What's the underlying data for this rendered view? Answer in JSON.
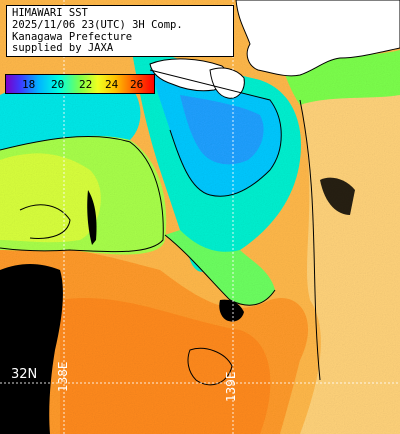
{
  "title": {
    "line1": "HIMAWARI SST",
    "line2": "2025/11/06 23(UTC) 3H Comp.",
    "line3": "Kanagawa Prefecture",
    "line4": "supplied by JAXA"
  },
  "colorbar": {
    "ticks": [
      "18",
      "20",
      "22",
      "24",
      "26"
    ],
    "min": 17,
    "max": 27
  },
  "grid": {
    "lat_label": "32N",
    "lon_label": "138E",
    "lon_label2": "139E"
  },
  "colors": {
    "land": "#ffffff",
    "no_data": "#000000",
    "grid": "#ffffff",
    "contour": "#000000",
    "sst_cold": "#00c8ff",
    "sst_mid": "#7cff4c",
    "sst_warm": "#ffb000",
    "sst_hot": "#ff7a00"
  }
}
